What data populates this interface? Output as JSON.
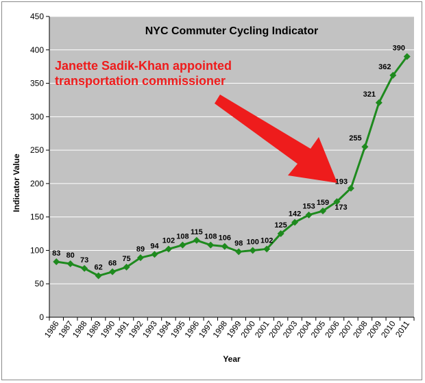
{
  "chart_data": {
    "type": "line",
    "title": "NYC Commuter Cycling Indicator",
    "xlabel": "Year",
    "ylabel": "Indicator Value",
    "ylim": [
      0,
      450
    ],
    "yticks": [
      0,
      50,
      100,
      150,
      200,
      250,
      300,
      350,
      400,
      450
    ],
    "grid": true,
    "legend": "none",
    "colors": {
      "line": "#1e8a1e",
      "plot_bg": "#c2c2c2",
      "grid": "#ffffff",
      "annotation": "#ee1c1c"
    },
    "categories": [
      "1986",
      "1987",
      "1988",
      "1989",
      "1990",
      "1991",
      "1992",
      "1993",
      "1994",
      "1995",
      "1996",
      "1997",
      "1998",
      "1999",
      "2000",
      "2001",
      "2002",
      "2003",
      "2004",
      "2005",
      "2006",
      "2007",
      "2008",
      "2009",
      "2010",
      "2011"
    ],
    "series": [
      {
        "values": [
          83,
          80,
          73,
          62,
          68,
          75,
          89,
          94,
          102,
          108,
          115,
          108,
          106,
          98,
          100,
          102,
          125,
          142,
          153,
          159,
          173,
          193,
          255,
          321,
          362,
          390
        ]
      }
    ],
    "data_labels": [
      "83",
      "80",
      "73",
      "62",
      "68",
      "75",
      "89",
      "94",
      "102",
      "108",
      "115",
      "108",
      "106",
      "98",
      "100",
      "102",
      "125",
      "142",
      "153",
      "159",
      "173",
      "193",
      "255",
      "321",
      "362",
      "390"
    ],
    "annotation": {
      "lines": [
        "Janette Sadik-Khan appointed",
        "transportation commissioner"
      ],
      "arrow_icon": "red-arrow-icon"
    }
  }
}
